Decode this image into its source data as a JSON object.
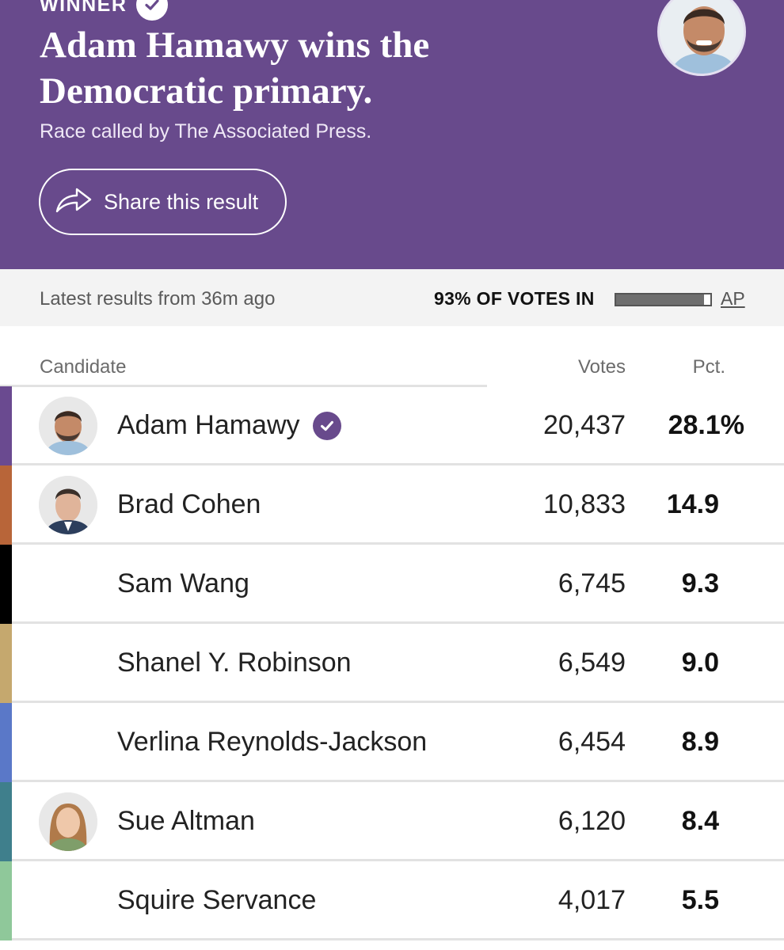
{
  "header": {
    "winner_label": "WINNER",
    "headline": "Adam Hamawy wins the Democratic primary.",
    "subhead": "Race called by The Associated Press.",
    "share_label": "Share this result",
    "accent_color": "#684a8c"
  },
  "status": {
    "updated": "Latest results from 36m ago",
    "reporting": "93% OF VOTES IN",
    "reporting_fraction": 0.93,
    "source": "AP"
  },
  "table": {
    "col_candidate": "Candidate",
    "col_votes": "Votes",
    "col_pct": "Pct.",
    "rows": [
      {
        "name": "Adam Hamawy",
        "votes": "20,437",
        "pct": "28.1%",
        "color": "#6a4a90",
        "winner": true,
        "photo": true
      },
      {
        "name": "Brad Cohen",
        "votes": "10,833",
        "pct": "14.9",
        "color": "#b86539",
        "winner": false,
        "photo": true
      },
      {
        "name": "Sam Wang",
        "votes": "6,745",
        "pct": "9.3",
        "color": "#000000",
        "winner": false,
        "photo": false
      },
      {
        "name": "Shanel Y. Robinson",
        "votes": "6,549",
        "pct": "9.0",
        "color": "#c5a86e",
        "winner": false,
        "photo": false
      },
      {
        "name": "Verlina Reynolds-Jackson",
        "votes": "6,454",
        "pct": "8.9",
        "color": "#5a78c8",
        "winner": false,
        "photo": false
      },
      {
        "name": "Sue Altman",
        "votes": "6,120",
        "pct": "8.4",
        "color": "#3f7f8c",
        "winner": false,
        "photo": true
      },
      {
        "name": "Squire Servance",
        "votes": "4,017",
        "pct": "5.5",
        "color": "#8fc89a",
        "winner": false,
        "photo": false
      }
    ]
  }
}
